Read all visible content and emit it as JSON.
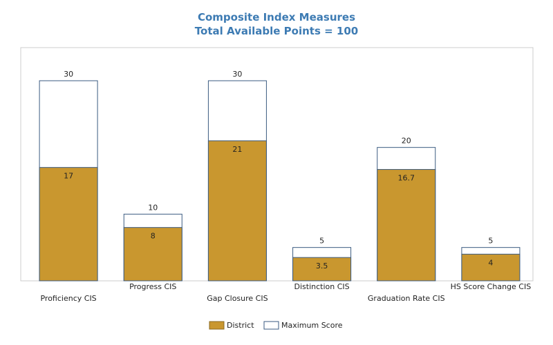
{
  "chart_data": {
    "type": "bar",
    "title": "Composite Index Measures",
    "subtitle": "Total Available Points = 100",
    "categories": [
      "Proficiency CIS",
      "Progress CIS",
      "Gap Closure CIS",
      "Distinction CIS",
      "Graduation Rate CIS",
      "HS Score Change CIS"
    ],
    "series": [
      {
        "name": "District",
        "values": [
          17,
          8,
          21,
          3.5,
          16.7,
          4
        ],
        "value_labels": [
          "17",
          "8",
          "21",
          "3.5",
          "16.7",
          "4"
        ],
        "color": "#c9972f"
      },
      {
        "name": "Maximum Score",
        "values": [
          30,
          10,
          30,
          5,
          20,
          5
        ],
        "value_labels": [
          "30",
          "10",
          "30",
          "5",
          "20",
          "5"
        ],
        "color": "#ffffff",
        "stroke": "#3a5a80"
      }
    ],
    "overlay": true,
    "ylim": [
      0,
      34
    ],
    "grid": false,
    "legend_position": "bottom-center",
    "category_label_layout": "staggered",
    "frame_color": "#cccccc"
  }
}
